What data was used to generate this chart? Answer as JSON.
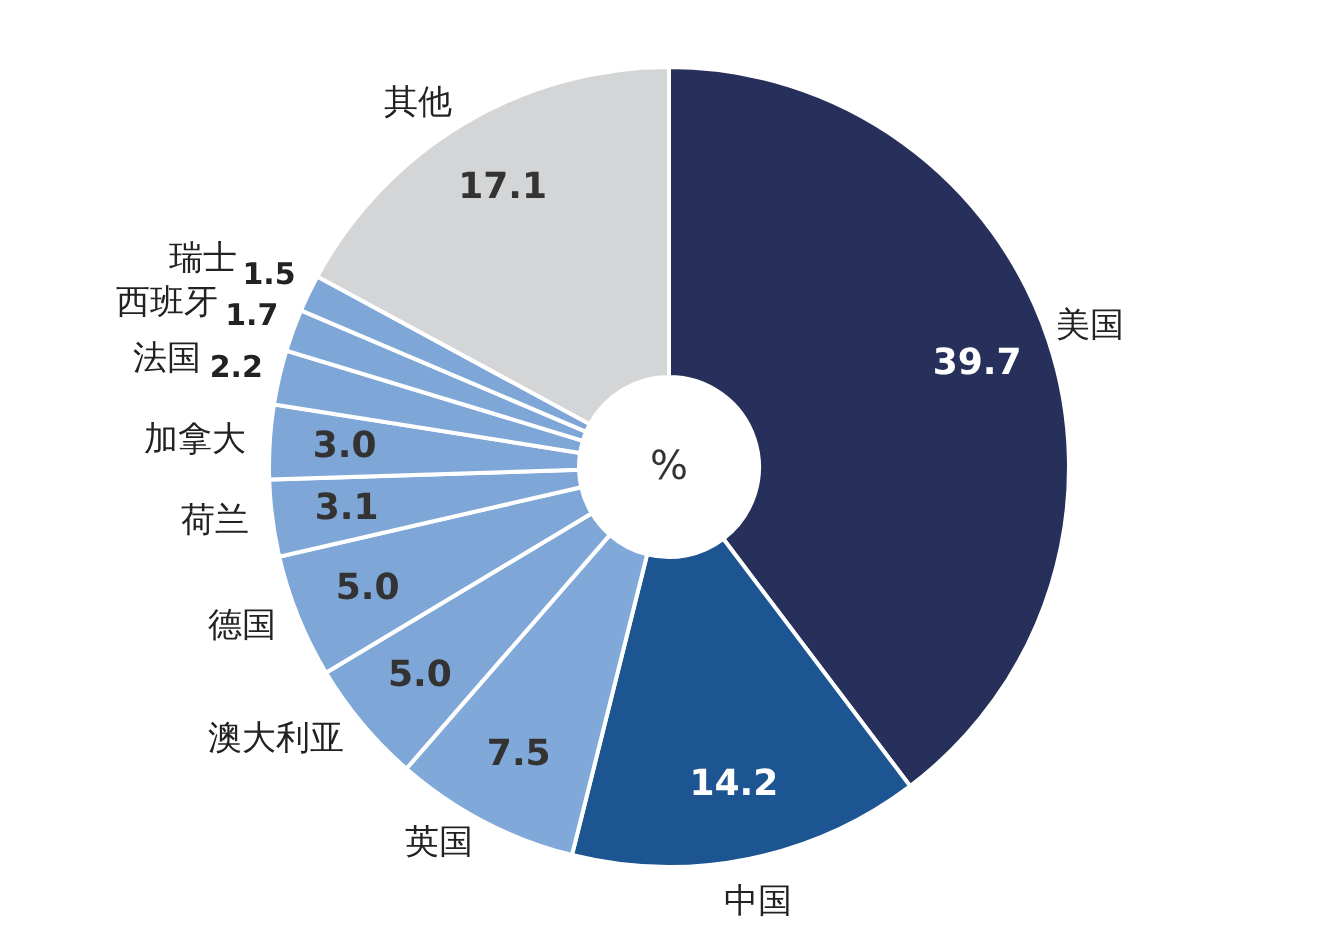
{
  "chart_data": {
    "type": "donut",
    "categories": [
      "美国",
      "中国",
      "英国",
      "澳大利亚",
      "德国",
      "荷兰",
      "加拿大",
      "法国",
      "西班牙",
      "瑞士",
      "其他"
    ],
    "values": [
      39.7,
      14.2,
      7.5,
      5.0,
      5.0,
      3.1,
      3.0,
      2.2,
      1.7,
      1.5,
      17.1
    ],
    "colors": [
      "#27305a",
      "#1c5592",
      "#80a9d9",
      "#7ea7d7",
      "#7ea7d7",
      "#7ea7d7",
      "#7ea7d7",
      "#7ea7d7",
      "#7ea7d7",
      "#7ea7d7",
      "#d3d5d7"
    ],
    "value_labels": [
      "39.7",
      "14.2",
      "7.5",
      "5.0",
      "5.0",
      "3.1",
      "3.0",
      "2.2",
      "1.7",
      "1.5",
      "17.1"
    ],
    "annotations": [
      "%"
    ]
  }
}
